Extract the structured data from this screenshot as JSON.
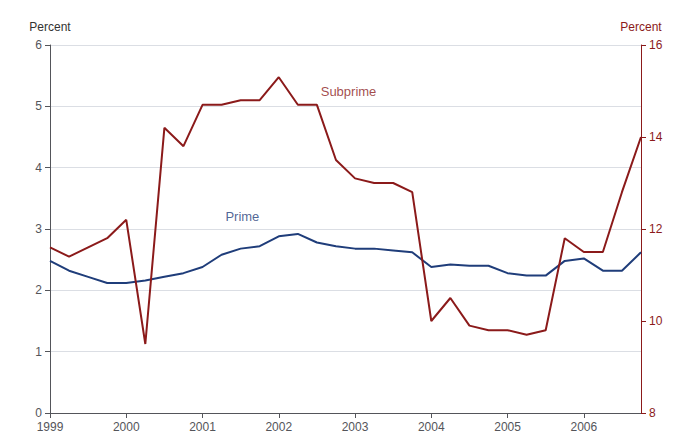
{
  "chart_data": {
    "type": "line",
    "x": [
      1999.0,
      1999.25,
      1999.5,
      1999.75,
      2000.0,
      2000.25,
      2000.5,
      2000.75,
      2001.0,
      2001.25,
      2001.5,
      2001.75,
      2002.0,
      2002.25,
      2002.5,
      2002.75,
      2003.0,
      2003.25,
      2003.5,
      2003.75,
      2004.0,
      2004.25,
      2004.5,
      2004.75,
      2005.0,
      2005.25,
      2005.5,
      2005.75,
      2006.0,
      2006.25,
      2006.5,
      2006.75
    ],
    "xlim": [
      1999.0,
      2006.75
    ],
    "xticks": [
      1999,
      2000,
      2001,
      2002,
      2003,
      2004,
      2005,
      2006
    ],
    "ylabel": "Percent",
    "ylim": [
      0,
      6
    ],
    "yticks": [
      0,
      1,
      2,
      3,
      4,
      5,
      6
    ],
    "y2label": "Percent",
    "y2lim": [
      8,
      16
    ],
    "y2ticks": [
      8,
      10,
      12,
      14,
      16
    ],
    "grid": true,
    "series": [
      {
        "name": "Prime",
        "color": "#1f3d7a",
        "values": [
          2.48,
          2.32,
          2.22,
          2.12,
          2.12,
          2.16,
          2.22,
          2.28,
          2.38,
          2.58,
          2.68,
          2.72,
          2.88,
          2.92,
          2.78,
          2.72,
          2.68,
          2.68,
          2.65,
          2.62,
          2.38,
          2.42,
          2.4,
          2.4,
          2.28,
          2.24,
          2.24,
          2.48,
          2.52,
          2.32,
          2.32,
          2.62
        ]
      },
      {
        "name": "Subprime",
        "color": "#8b1a1a",
        "axis": "y2",
        "values": [
          11.6,
          11.4,
          11.6,
          11.8,
          12.2,
          9.5,
          14.2,
          13.8,
          14.7,
          14.7,
          14.8,
          14.8,
          15.3,
          14.7,
          14.7,
          13.5,
          13.1,
          13.0,
          13.0,
          12.8,
          10.0,
          10.5,
          9.9,
          9.8,
          9.8,
          9.7,
          9.8,
          11.8,
          11.5,
          11.5,
          12.8,
          14.0
        ]
      }
    ],
    "annotations": [
      {
        "text": "Prime",
        "x": 2001.3,
        "y": 3.2,
        "color": "#1f3d7a"
      },
      {
        "text": "Subprime",
        "x": 2002.55,
        "y": 5.25,
        "color": "#8b1a1a"
      }
    ]
  }
}
